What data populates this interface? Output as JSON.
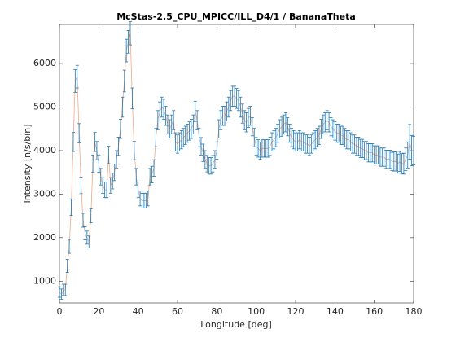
{
  "chart_data": {
    "type": "errorbar_line",
    "title": "McStas-2.5_CPU_MPICC/ILL_D4/1 / BananaTheta",
    "xlabel": "Longitude [deg]",
    "ylabel": "Intensity [n/s/bin]",
    "xlim": [
      0,
      180
    ],
    "xticks": [
      0,
      20,
      40,
      60,
      80,
      100,
      120,
      140,
      160,
      180
    ],
    "ylim": [
      500,
      6900
    ],
    "yticks": [
      1000,
      2000,
      3000,
      4000,
      5000,
      6000
    ],
    "line_color": "#f0a986",
    "error_color": "#1f77b4",
    "x": [
      0,
      1,
      2,
      3,
      4,
      5,
      6,
      7,
      8,
      9,
      10,
      11,
      12,
      13,
      14,
      15,
      16,
      17,
      18,
      19,
      20,
      21,
      22,
      23,
      24,
      25,
      26,
      27,
      28,
      29,
      30,
      31,
      32,
      33,
      34,
      35,
      36,
      37,
      38,
      39,
      40,
      41,
      42,
      43,
      44,
      45,
      46,
      47,
      48,
      49,
      50,
      51,
      52,
      53,
      54,
      55,
      56,
      57,
      58,
      59,
      60,
      61,
      62,
      63,
      64,
      65,
      66,
      67,
      68,
      69,
      70,
      71,
      72,
      73,
      74,
      75,
      76,
      77,
      78,
      79,
      80,
      81,
      82,
      83,
      84,
      85,
      86,
      87,
      88,
      89,
      90,
      91,
      92,
      93,
      94,
      95,
      96,
      97,
      98,
      99,
      100,
      101,
      102,
      103,
      104,
      105,
      106,
      107,
      108,
      109,
      110,
      111,
      112,
      113,
      114,
      115,
      116,
      117,
      118,
      119,
      120,
      121,
      122,
      123,
      124,
      125,
      126,
      127,
      128,
      129,
      130,
      131,
      132,
      133,
      134,
      135,
      136,
      137,
      138,
      139,
      140,
      141,
      142,
      143,
      144,
      145,
      146,
      147,
      148,
      149,
      150,
      151,
      152,
      153,
      154,
      155,
      156,
      157,
      158,
      159,
      160,
      161,
      162,
      163,
      164,
      165,
      166,
      167,
      168,
      169,
      170,
      171,
      172,
      173,
      174,
      175,
      176,
      177,
      178,
      179,
      180
    ],
    "values": [
      750,
      700,
      800,
      800,
      1350,
      1800,
      2700,
      4200,
      5600,
      5700,
      4400,
      3200,
      2400,
      2100,
      2000,
      1900,
      2500,
      3700,
      4200,
      4000,
      3700,
      3400,
      3200,
      3100,
      3100,
      3900,
      3200,
      3300,
      3500,
      3800,
      4100,
      4500,
      5000,
      5600,
      6300,
      6500,
      6700,
      5200,
      4000,
      3400,
      3100,
      2900,
      2850,
      2850,
      2850,
      2900,
      3400,
      3450,
      3600,
      4300,
      4700,
      4900,
      5000,
      4950,
      4800,
      4600,
      4500,
      4600,
      4700,
      4200,
      4150,
      4200,
      4250,
      4300,
      4350,
      4400,
      4450,
      4500,
      4600,
      4900,
      4700,
      4300,
      4100,
      3950,
      3800,
      3700,
      3650,
      3650,
      3700,
      3800,
      4000,
      4500,
      4700,
      4800,
      4800,
      4900,
      5000,
      5150,
      5250,
      5250,
      5200,
      5150,
      5000,
      4850,
      4700,
      4650,
      4750,
      4800,
      4550,
      4300,
      4100,
      4050,
      4000,
      4050,
      4050,
      4050,
      4050,
      4100,
      4200,
      4250,
      4300,
      4400,
      4500,
      4550,
      4600,
      4650,
      4550,
      4400,
      4300,
      4250,
      4200,
      4200,
      4250,
      4200,
      4200,
      4150,
      4150,
      4100,
      4150,
      4200,
      4250,
      4300,
      4350,
      4500,
      4600,
      4650,
      4700,
      4650,
      4550,
      4500,
      4450,
      4400,
      4400,
      4350,
      4350,
      4300,
      4250,
      4250,
      4200,
      4150,
      4150,
      4100,
      4100,
      4050,
      4050,
      4000,
      4000,
      3950,
      3950,
      3950,
      3900,
      3900,
      3900,
      3850,
      3850,
      3850,
      3800,
      3800,
      3800,
      3750,
      3750,
      3750,
      3700,
      3750,
      3700,
      3700,
      3800,
      3900,
      4200,
      4000,
      4000
    ],
    "errors": [
      120,
      120,
      130,
      130,
      150,
      160,
      190,
      220,
      260,
      260,
      220,
      190,
      160,
      150,
      150,
      140,
      160,
      200,
      220,
      210,
      200,
      190,
      180,
      180,
      180,
      200,
      180,
      180,
      190,
      200,
      210,
      220,
      230,
      250,
      260,
      260,
      270,
      240,
      210,
      190,
      180,
      170,
      170,
      170,
      170,
      170,
      190,
      190,
      190,
      210,
      220,
      220,
      230,
      230,
      220,
      220,
      210,
      220,
      220,
      210,
      210,
      210,
      210,
      210,
      210,
      210,
      210,
      220,
      220,
      230,
      220,
      210,
      200,
      200,
      200,
      190,
      190,
      190,
      190,
      200,
      200,
      210,
      220,
      220,
      220,
      220,
      230,
      230,
      230,
      230,
      230,
      230,
      230,
      220,
      220,
      220,
      220,
      220,
      210,
      210,
      200,
      200,
      200,
      200,
      200,
      200,
      200,
      210,
      210,
      210,
      210,
      210,
      210,
      220,
      220,
      220,
      210,
      210,
      210,
      210,
      210,
      210,
      210,
      210,
      210,
      210,
      210,
      210,
      210,
      210,
      210,
      210,
      210,
      220,
      220,
      220,
      220,
      220,
      210,
      210,
      210,
      210,
      210,
      210,
      210,
      210,
      210,
      210,
      210,
      210,
      210,
      210,
      210,
      210,
      210,
      210,
      210,
      210,
      210,
      210,
      210,
      210,
      210,
      210,
      210,
      210,
      210,
      210,
      210,
      210,
      220,
      220,
      220,
      230,
      230,
      240,
      260,
      300,
      400,
      350,
      330
    ]
  }
}
